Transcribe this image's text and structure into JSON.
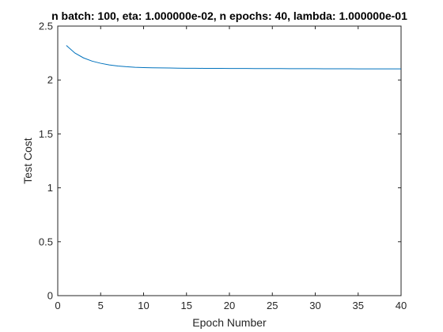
{
  "chart_data": {
    "type": "line",
    "title": "n batch: 100, eta: 1.000000e-02, n epochs: 40, lambda: 1.000000e-01",
    "xlabel": "Epoch Number",
    "ylabel": "Test Cost",
    "xlim": [
      0,
      40
    ],
    "ylim": [
      0,
      2.5
    ],
    "xticks": [
      0,
      5,
      10,
      15,
      20,
      25,
      30,
      35,
      40
    ],
    "yticks": [
      0,
      0.5,
      1,
      1.5,
      2,
      2.5
    ],
    "xtick_labels": [
      "0",
      "5",
      "10",
      "15",
      "20",
      "25",
      "30",
      "35",
      "40"
    ],
    "ytick_labels": [
      "0",
      "0.5",
      "1",
      "1.5",
      "2",
      "2.5"
    ],
    "grid": false,
    "legend": "none",
    "series": [
      {
        "color": "#0072BD",
        "x": [
          1,
          2,
          3,
          4,
          5,
          6,
          7,
          8,
          9,
          10,
          11,
          12,
          13,
          14,
          15,
          16,
          17,
          18,
          19,
          20,
          21,
          22,
          23,
          24,
          25,
          26,
          27,
          28,
          29,
          30,
          31,
          32,
          33,
          34,
          35,
          36,
          37,
          38,
          39,
          40
        ],
        "y": [
          2.32,
          2.25,
          2.205,
          2.175,
          2.155,
          2.14,
          2.13,
          2.123,
          2.118,
          2.115,
          2.113,
          2.112,
          2.111,
          2.11,
          2.109,
          2.109,
          2.108,
          2.108,
          2.108,
          2.107,
          2.107,
          2.107,
          2.106,
          2.106,
          2.106,
          2.106,
          2.105,
          2.105,
          2.105,
          2.105,
          2.104,
          2.104,
          2.104,
          2.104,
          2.103,
          2.103,
          2.103,
          2.103,
          2.103,
          2.103
        ]
      }
    ]
  }
}
